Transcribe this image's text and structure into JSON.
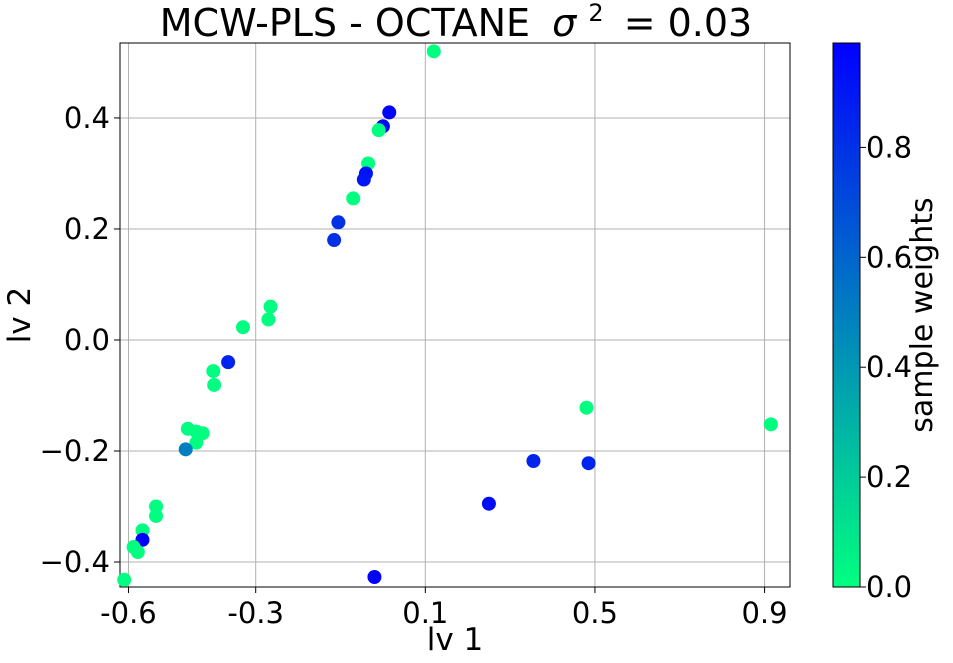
{
  "chart_data": {
    "type": "scatter",
    "title": "MCW-PLS - OCTANE σ² = 0.03",
    "title_main": "MCW-PLS - OCTANE",
    "title_sigma": "σ",
    "title_power": "2",
    "title_value": "= 0.03",
    "xlabel": "lv 1",
    "ylabel": "lv 2",
    "xlim": [
      -0.62,
      0.96
    ],
    "ylim": [
      -0.445,
      0.535
    ],
    "xticks": [
      -0.6,
      -0.3,
      0.1,
      0.5,
      0.9
    ],
    "xtick_labels": [
      "-0.6",
      "-0.3",
      "0.1",
      "0.5",
      "0.9"
    ],
    "yticks": [
      0.4,
      0.2,
      0.0,
      -0.2,
      -0.4
    ],
    "ytick_labels": [
      "0.4",
      "0.2",
      "0.0",
      "−0.2",
      "−0.4"
    ],
    "grid": true,
    "colorbar": {
      "label": "sample weights",
      "range": [
        0,
        0.99
      ],
      "ticks": [
        0.0,
        0.2,
        0.4,
        0.6,
        0.8
      ],
      "tick_labels": [
        "0.0",
        "0.2",
        "0.4",
        "0.6",
        "0.8"
      ],
      "colormap": "winter",
      "color_low": "#00ff80",
      "color_high": "#0000ff"
    },
    "points": [
      {
        "x": 0.12,
        "y": 0.52,
        "w": 0.0
      },
      {
        "x": 0.015,
        "y": 0.41,
        "w": 0.98
      },
      {
        "x": 0.0,
        "y": 0.385,
        "w": 0.95
      },
      {
        "x": -0.01,
        "y": 0.378,
        "w": 0.0
      },
      {
        "x": -0.035,
        "y": 0.318,
        "w": 0.0
      },
      {
        "x": -0.04,
        "y": 0.3,
        "w": 0.92
      },
      {
        "x": -0.045,
        "y": 0.289,
        "w": 0.9
      },
      {
        "x": -0.07,
        "y": 0.255,
        "w": 0.0
      },
      {
        "x": -0.105,
        "y": 0.212,
        "w": 0.8
      },
      {
        "x": -0.115,
        "y": 0.18,
        "w": 0.8
      },
      {
        "x": -0.265,
        "y": 0.06,
        "w": 0.0
      },
      {
        "x": -0.27,
        "y": 0.037,
        "w": 0.0
      },
      {
        "x": -0.33,
        "y": 0.023,
        "w": 0.0
      },
      {
        "x": -0.365,
        "y": -0.04,
        "w": 0.85
      },
      {
        "x": -0.4,
        "y": -0.056,
        "w": 0.0
      },
      {
        "x": -0.398,
        "y": -0.081,
        "w": 0.0
      },
      {
        "x": -0.46,
        "y": -0.16,
        "w": 0.0
      },
      {
        "x": -0.44,
        "y": -0.165,
        "w": 0.0
      },
      {
        "x": -0.425,
        "y": -0.168,
        "w": 0.0
      },
      {
        "x": -0.44,
        "y": -0.185,
        "w": 0.0
      },
      {
        "x": -0.465,
        "y": -0.197,
        "w": 0.5
      },
      {
        "x": -0.535,
        "y": -0.3,
        "w": 0.0
      },
      {
        "x": -0.535,
        "y": -0.317,
        "w": 0.0
      },
      {
        "x": -0.567,
        "y": -0.343,
        "w": 0.0
      },
      {
        "x": -0.567,
        "y": -0.36,
        "w": 0.99
      },
      {
        "x": -0.588,
        "y": -0.373,
        "w": 0.0
      },
      {
        "x": -0.578,
        "y": -0.382,
        "w": 0.0
      },
      {
        "x": -0.61,
        "y": -0.432,
        "w": 0.0
      },
      {
        "x": -0.02,
        "y": -0.427,
        "w": 0.99
      },
      {
        "x": 0.25,
        "y": -0.295,
        "w": 0.95
      },
      {
        "x": 0.355,
        "y": -0.218,
        "w": 0.85
      },
      {
        "x": 0.48,
        "y": -0.122,
        "w": 0.0
      },
      {
        "x": 0.485,
        "y": -0.222,
        "w": 0.85
      },
      {
        "x": 0.915,
        "y": -0.152,
        "w": 0.0
      }
    ]
  }
}
